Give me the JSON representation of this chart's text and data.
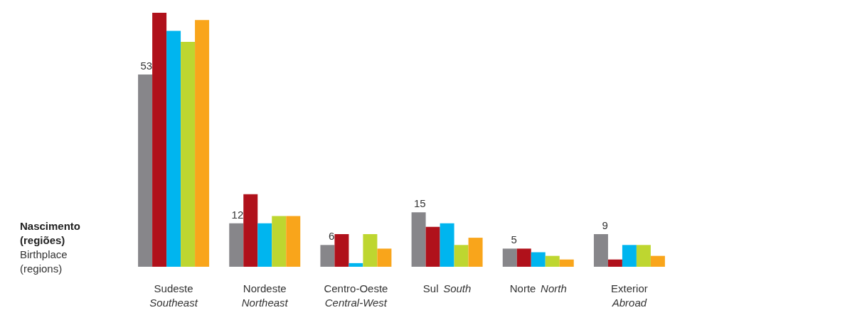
{
  "chart_data": {
    "type": "bar",
    "ylabel": "Nascimento\n(regiões)\nBirthplace\n(regions)",
    "categories": [
      "Sudeste\nSoutheast",
      "Nordeste\nNortheast",
      "Centro-Oeste\nCentral-West",
      "Sul South",
      "Norte North",
      "Exterior\nAbroad"
    ],
    "ylim": [
      0,
      70
    ],
    "tick_labels": "x",
    "series": [
      {
        "color": "#87868a",
        "values": [
          53,
          12,
          6,
          15,
          5,
          9
        ],
        "value_labels": [
          "53",
          "12",
          "6",
          "15",
          "5",
          "9"
        ]
      },
      {
        "color": "#b0111b",
        "values": [
          70,
          20,
          9,
          11,
          5,
          2
        ]
      },
      {
        "color": "#00b5ef",
        "values": [
          65,
          12,
          1,
          12,
          4,
          6
        ]
      },
      {
        "color": "#bed630",
        "values": [
          62,
          14,
          9,
          6,
          3,
          6
        ]
      },
      {
        "color": "#f9a51b",
        "values": [
          68,
          14,
          5,
          8,
          2,
          3
        ]
      }
    ]
  }
}
